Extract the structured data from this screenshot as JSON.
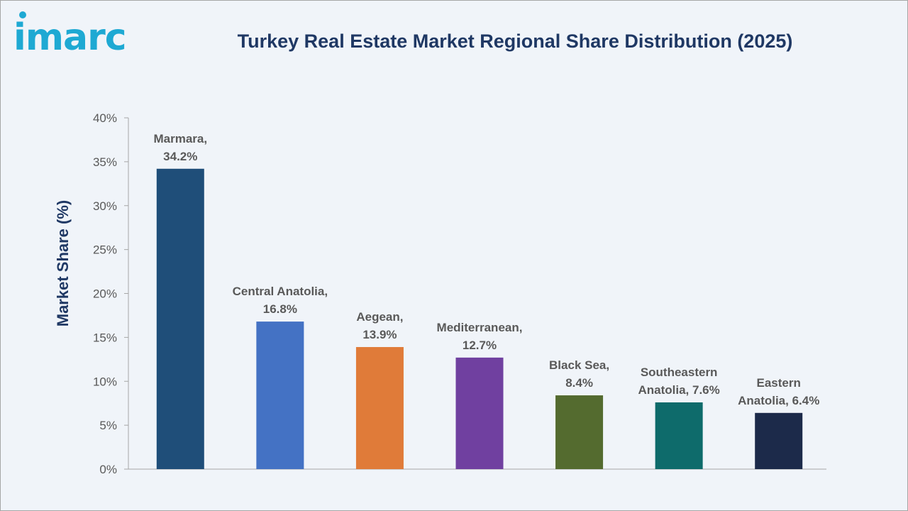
{
  "brand": {
    "logo_text": "imarc"
  },
  "chart_data": {
    "type": "bar",
    "title": "Turkey Real Estate Market Regional Share Distribution (2025)",
    "ylabel": "Market Share (%)",
    "xlabel": "",
    "ylim": [
      0,
      40
    ],
    "y_ticks": [
      "0%",
      "5%",
      "10%",
      "15%",
      "20%",
      "25%",
      "30%",
      "35%",
      "40%"
    ],
    "y_tick_values": [
      0,
      5,
      10,
      15,
      20,
      25,
      30,
      35,
      40
    ],
    "grid": false,
    "categories": [
      "Marmara",
      "Central Anatolia",
      "Aegean",
      "Mediterranean",
      "Black Sea",
      "Southeastern Anatolia",
      "Eastern Anatolia"
    ],
    "values": [
      34.2,
      16.8,
      13.9,
      12.7,
      8.4,
      7.6,
      6.4
    ],
    "data_labels": [
      [
        "Marmara,",
        "34.2%"
      ],
      [
        "Central Anatolia,",
        "16.8%"
      ],
      [
        "Aegean,",
        "13.9%"
      ],
      [
        "Mediterranean,",
        "12.7%"
      ],
      [
        "Black Sea,",
        "8.4%"
      ],
      [
        "Southeastern",
        "Anatolia, 7.6%"
      ],
      [
        "Eastern",
        "Anatolia, 6.4%"
      ]
    ],
    "colors": [
      "#1f4e79",
      "#4472c4",
      "#e07b39",
      "#7040a0",
      "#546b2f",
      "#0e6b6b",
      "#1c2a4a"
    ]
  }
}
